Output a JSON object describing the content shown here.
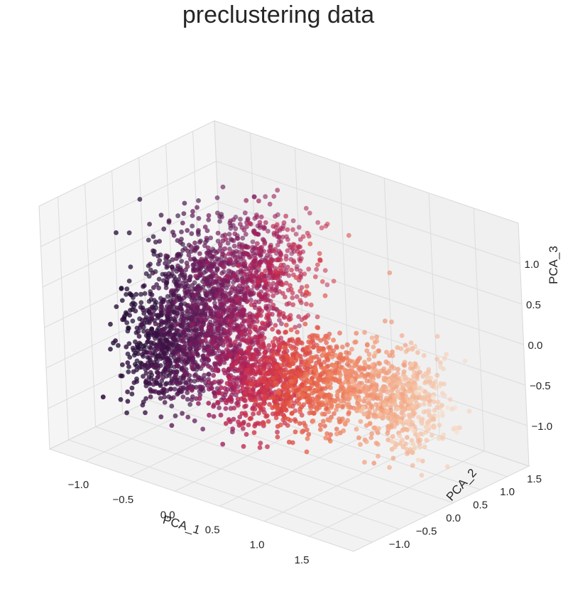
{
  "chart_data": {
    "type": "scatter3d",
    "title": "preclustering data",
    "xlabel": "PCA_1",
    "ylabel": "PCA_2",
    "zlabel": "PCA_3",
    "xlim": [
      -1.4,
      2.0
    ],
    "ylim": [
      -1.35,
      1.9
    ],
    "zlim": [
      -1.5,
      1.5
    ],
    "x_ticks": [
      "−1.0",
      "−0.5",
      "0.0",
      "0.5",
      "1.0",
      "1.5"
    ],
    "y_ticks": [
      "−1.0",
      "−0.5",
      "0.0",
      "0.5",
      "1.0",
      "1.5"
    ],
    "z_ticks": [
      "−1.0",
      "−0.5",
      "0.0",
      "0.5",
      "1.0"
    ],
    "x_tick_values": [
      -1.0,
      -0.5,
      0.0,
      0.5,
      1.0,
      1.5
    ],
    "y_tick_values": [
      -1.0,
      -0.5,
      0.0,
      0.5,
      1.0,
      1.5
    ],
    "z_tick_values": [
      -1.0,
      -0.5,
      0.0,
      0.5,
      1.0
    ],
    "colormap": [
      "#1f0c32",
      "#3d1145",
      "#5e1a57",
      "#821d5e",
      "#a8205a",
      "#cb2f4c",
      "#e2503f",
      "#ec7553",
      "#f29c78",
      "#f5c1a2",
      "#f7dfcc"
    ],
    "grid": true,
    "point_count_approx": 4000,
    "clusters": [
      {
        "center": [
          -0.95,
          0.15,
          -0.6
        ],
        "spread": [
          0.22,
          0.25,
          0.35
        ],
        "share": 0.16
      },
      {
        "center": [
          -0.55,
          0.35,
          0.05
        ],
        "spread": [
          0.3,
          0.3,
          0.45
        ],
        "share": 0.26
      },
      {
        "center": [
          -0.1,
          0.6,
          0.6
        ],
        "spread": [
          0.25,
          0.3,
          0.35
        ],
        "share": 0.12
      },
      {
        "center": [
          0.25,
          0.0,
          -0.45
        ],
        "spread": [
          0.3,
          0.25,
          0.3
        ],
        "share": 0.22
      },
      {
        "center": [
          0.9,
          0.25,
          -0.3
        ],
        "spread": [
          0.3,
          0.25,
          0.25
        ],
        "share": 0.12
      },
      {
        "center": [
          1.35,
          0.7,
          -0.55
        ],
        "spread": [
          0.22,
          0.25,
          0.3
        ],
        "share": 0.12
      }
    ]
  }
}
